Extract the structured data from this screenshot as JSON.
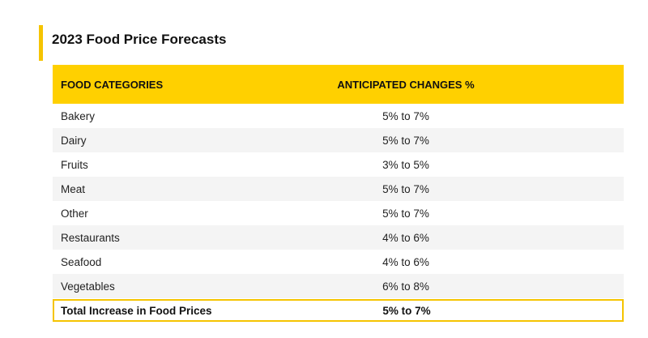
{
  "page": {
    "title": "2023 Food Price Forecasts",
    "accent_color": "#f5c400",
    "header_color": "#ffd000"
  },
  "table": {
    "headers": {
      "category": "FOOD CATEGORIES",
      "change": "ANTICIPATED CHANGES %"
    },
    "rows": [
      {
        "category": "Bakery",
        "change": "5% to 7%"
      },
      {
        "category": "Dairy",
        "change": "5% to 7%"
      },
      {
        "category": "Fruits",
        "change": "3% to 5%"
      },
      {
        "category": "Meat",
        "change": "5% to 7%"
      },
      {
        "category": "Other",
        "change": "5% to 7%"
      },
      {
        "category": "Restaurants",
        "change": "4% to 6%"
      },
      {
        "category": "Seafood",
        "change": "4% to 6%"
      },
      {
        "category": "Vegetables",
        "change": "6% to 8%"
      }
    ],
    "total": {
      "category": "Total Increase in Food Prices",
      "change": "5% to 7%"
    }
  }
}
